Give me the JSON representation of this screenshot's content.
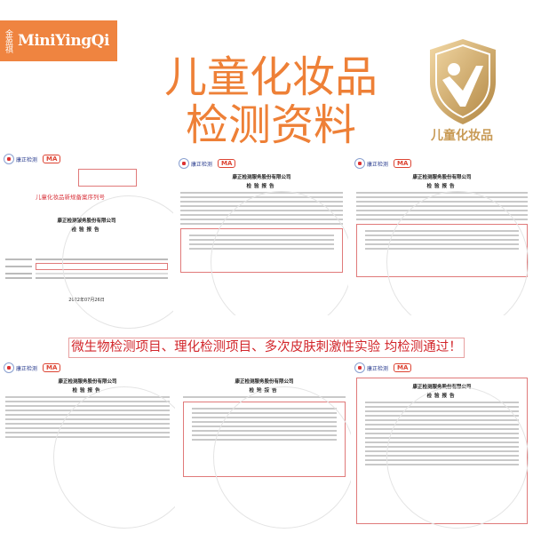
{
  "brand": {
    "logo_cn": "金盈祺",
    "logo_en": "MiniYingQi",
    "color": "#ef8440"
  },
  "title": {
    "line1": "儿童化妆品",
    "line2": "检测资料",
    "color": "#ee8037"
  },
  "badge": {
    "label": "儿童化妆品",
    "icon": "shield-person-icon"
  },
  "banner": {
    "text": "微生物检测项目、理化检测项目、多次皮肤刺激性实验 均检测通过！",
    "color": "#d2262b"
  },
  "documents": {
    "lab_logo": "康正检测",
    "ma_mark": "MA",
    "company": "康正检测服务股份有限公司",
    "report_title": "检验报告",
    "filing_note": "儿童化妆品新规备案序列号",
    "doc1": {
      "date": "2022年07月26日"
    }
  }
}
